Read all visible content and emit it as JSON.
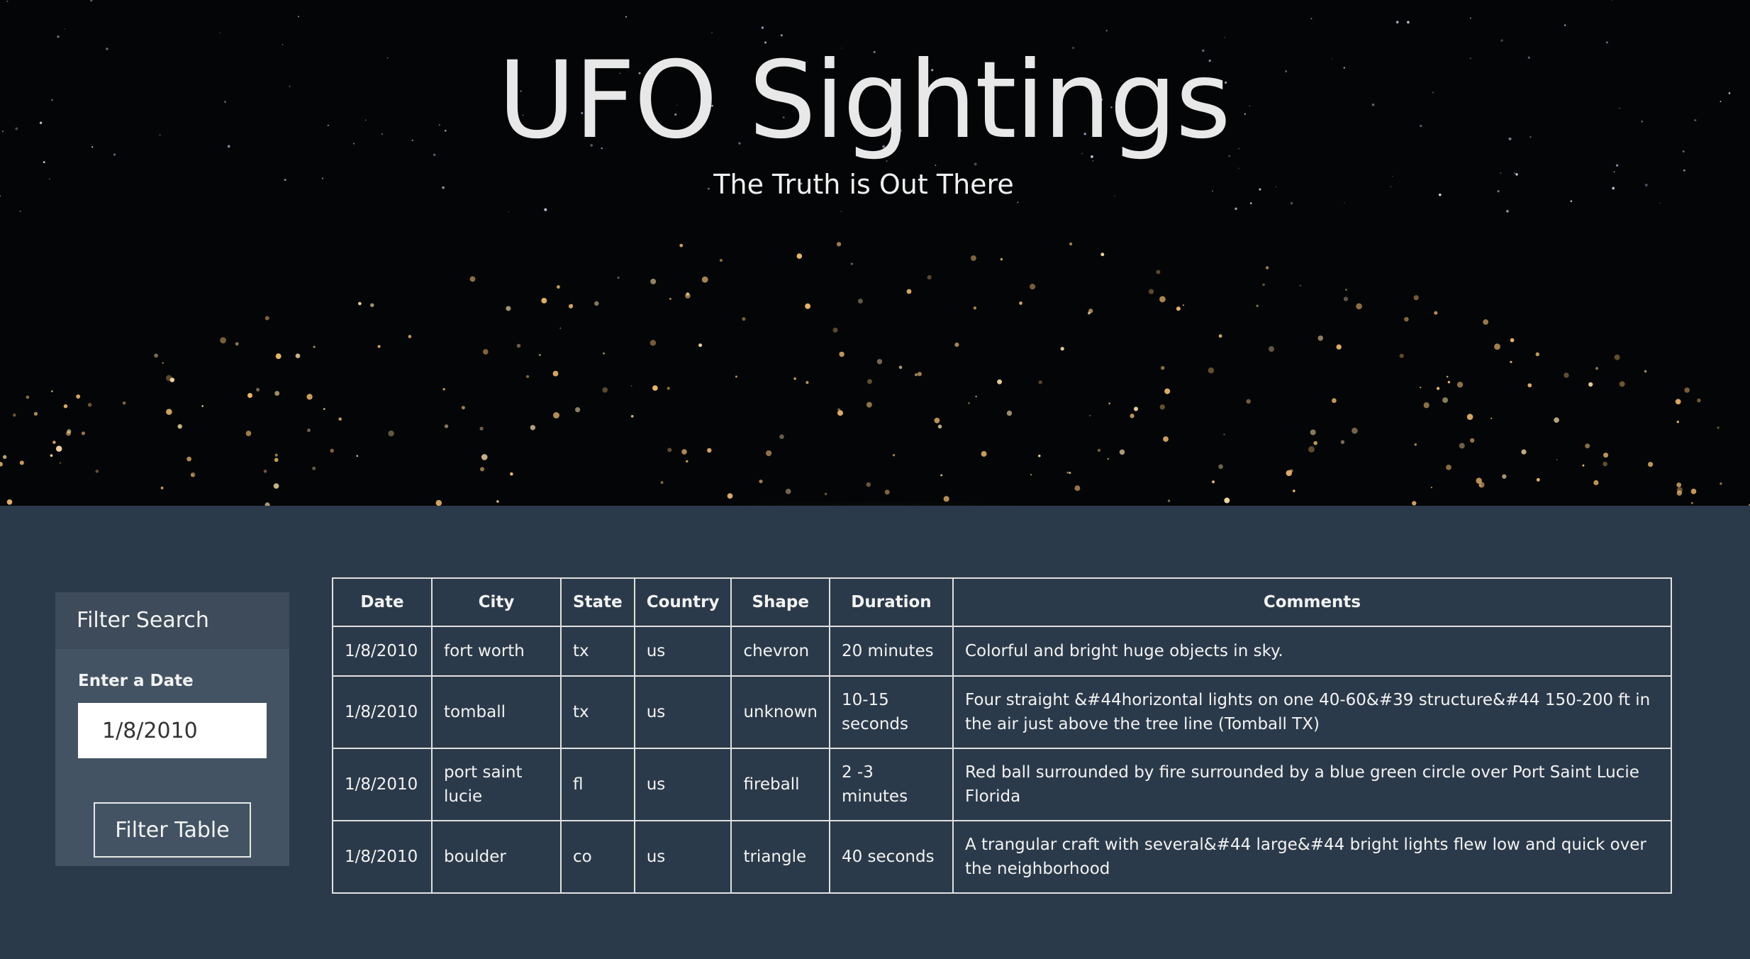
{
  "hero": {
    "title": "UFO Sightings",
    "subtitle": "The Truth is Out There"
  },
  "filter": {
    "header": "Filter Search",
    "label": "Enter a Date",
    "input_value": "1/8/2010",
    "button_label": "Filter Table"
  },
  "table": {
    "headers": [
      "Date",
      "City",
      "State",
      "Country",
      "Shape",
      "Duration",
      "Comments"
    ],
    "rows": [
      {
        "date": "1/8/2010",
        "city": "fort worth",
        "state": "tx",
        "country": "us",
        "shape": "chevron",
        "duration": "20 minutes",
        "comments": "Colorful and bright huge objects in sky."
      },
      {
        "date": "1/8/2010",
        "city": "tomball",
        "state": "tx",
        "country": "us",
        "shape": "unknown",
        "duration": "10-15 seconds",
        "comments": "Four straight &#44horizontal lights on one 40-60&#39 structure&#44 150-200 ft in the air just above the tree line (Tomball TX)"
      },
      {
        "date": "1/8/2010",
        "city": "port saint lucie",
        "state": "fl",
        "country": "us",
        "shape": "fireball",
        "duration": "2 -3 minutes",
        "comments": "Red ball surrounded by fire surrounded by a blue green circle over Port Saint Lucie Florida"
      },
      {
        "date": "1/8/2010",
        "city": "boulder",
        "state": "co",
        "country": "us",
        "shape": "triangle",
        "duration": "40 seconds",
        "comments": "A trangular craft with several&#44 large&#44 bright lights flew low and quick over the neighborhood"
      }
    ]
  },
  "colors": {
    "content_background": "#2b3a4a",
    "panel_background": "#435363",
    "panel_header_background": "#3d4b5a",
    "text": "#f2f2f2"
  }
}
